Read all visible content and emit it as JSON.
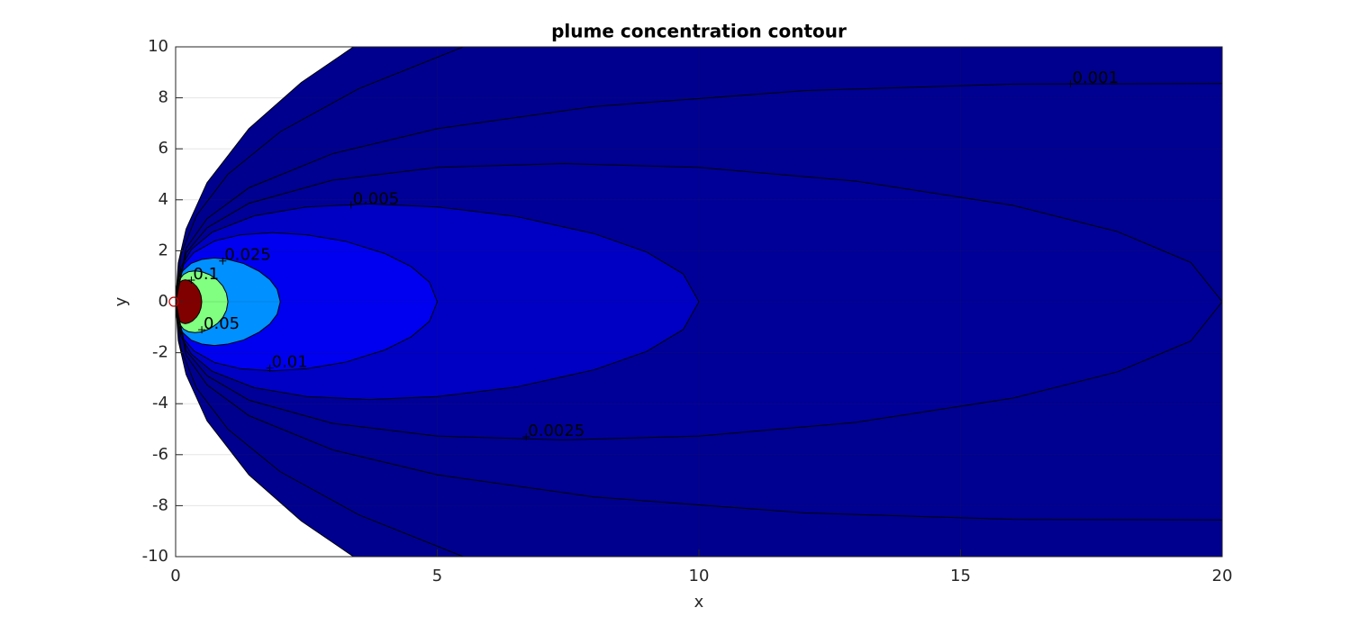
{
  "chart_data": {
    "type": "contour",
    "title": "plume concentration contour",
    "x_label": "x",
    "y_label": "y",
    "xlim": [
      0,
      20
    ],
    "ylim": [
      -10,
      10
    ],
    "xticks": [
      0,
      5,
      10,
      15,
      20
    ],
    "yticks": [
      -10,
      -8,
      -6,
      -4,
      -2,
      0,
      2,
      4,
      6,
      8,
      10
    ],
    "grid": true,
    "contours": [
      {
        "color": "#00008f",
        "x": [
          0,
          0.05,
          0.2,
          0.6,
          1.4,
          2.4,
          3.4
        ],
        "y": [
          0,
          1.52,
          2.85,
          4.67,
          6.79,
          8.6,
          10
        ]
      },
      {
        "color": "#00008f",
        "x": [
          0,
          0.1,
          0.4,
          1,
          2,
          3.5,
          5.5
        ],
        "y": [
          0,
          1.85,
          3.39,
          5.0,
          6.67,
          8.36,
          10
        ]
      },
      {
        "level": 0.001,
        "color": "#000091",
        "label_at": [
          17.1,
          8.55
        ],
        "x": [
          0,
          0.2,
          0.6,
          1.4,
          3,
          5,
          8,
          12,
          16,
          20
        ],
        "y": [
          0,
          2.1,
          3.26,
          4.47,
          5.81,
          6.79,
          7.66,
          8.28,
          8.54,
          8.56
        ]
      },
      {
        "level": 0.0025,
        "color": "#000098",
        "label_at": [
          6.7,
          -5.3
        ],
        "x": [
          0,
          0.2,
          0.6,
          1.4,
          3,
          5,
          7.4,
          10,
          13,
          16,
          18,
          19.4,
          20
        ],
        "y": [
          0,
          1.92,
          2.9,
          3.86,
          4.77,
          5.27,
          5.42,
          5.27,
          4.73,
          3.78,
          2.75,
          1.54,
          0
        ]
      },
      {
        "level": 0.005,
        "color": "#0000c4",
        "label_at": [
          3.35,
          3.8
        ],
        "x": [
          0,
          0.1,
          0.3,
          0.7,
          1.5,
          2.5,
          3.7,
          5,
          6.5,
          8,
          9,
          9.7,
          10
        ],
        "y": [
          0,
          1.36,
          2.05,
          2.73,
          3.37,
          3.72,
          3.84,
          3.72,
          3.35,
          2.67,
          1.95,
          1.09,
          0
        ]
      },
      {
        "level": 0.01,
        "color": "#0000f0",
        "label_at": [
          1.8,
          -2.6
        ],
        "x": [
          0,
          0.05,
          0.15,
          0.35,
          0.75,
          1.25,
          1.85,
          2.5,
          3.25,
          4,
          4.5,
          4.85,
          5
        ],
        "y": [
          0,
          0.96,
          1.45,
          1.93,
          2.39,
          2.63,
          2.71,
          2.63,
          2.37,
          1.89,
          1.38,
          0.77,
          0
        ]
      },
      {
        "level": 0.025,
        "color": "#0090ff",
        "label_at": [
          0.9,
          1.6
        ],
        "x": [
          0,
          0.02,
          0.06,
          0.14,
          0.3,
          0.5,
          0.74,
          1,
          1.3,
          1.6,
          1.8,
          1.94,
          2
        ],
        "y": [
          0,
          0.61,
          0.92,
          1.22,
          1.51,
          1.66,
          1.72,
          1.66,
          1.5,
          1.19,
          0.87,
          0.49,
          0
        ]
      },
      {
        "level": 0.05,
        "color": "#80ff80",
        "label_at": [
          0.5,
          -1.1
        ],
        "x": [
          0,
          0.01,
          0.03,
          0.07,
          0.15,
          0.25,
          0.37,
          0.5,
          0.65,
          0.8,
          0.9,
          0.97,
          1
        ],
        "y": [
          0,
          0.43,
          0.65,
          0.86,
          1.07,
          1.18,
          1.21,
          1.18,
          1.06,
          0.85,
          0.62,
          0.34,
          0
        ]
      },
      {
        "level": 0.1,
        "color": "#800000",
        "label_at": [
          0.3,
          0.85
        ],
        "x": [
          0,
          0.005,
          0.015,
          0.035,
          0.075,
          0.125,
          0.185,
          0.25,
          0.325,
          0.4,
          0.45,
          0.485,
          0.5
        ],
        "y": [
          0,
          0.3,
          0.46,
          0.61,
          0.75,
          0.83,
          0.86,
          0.83,
          0.75,
          0.6,
          0.44,
          0.24,
          0
        ]
      }
    ],
    "points": {
      "color": "#c00000",
      "x": [
        0
      ],
      "y": [
        0
      ]
    }
  }
}
